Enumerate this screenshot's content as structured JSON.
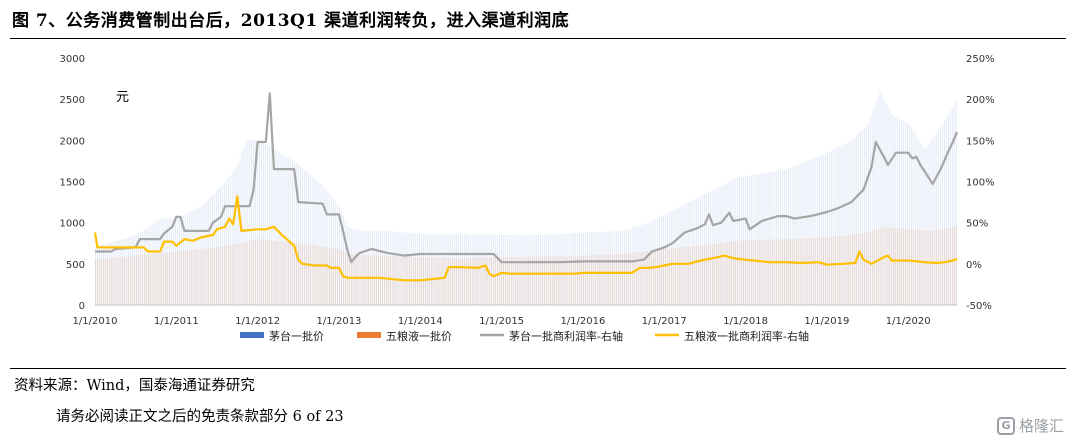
{
  "title": "图 7、公务消费管制出台后，2013Q1 渠道利润转负，进入渠道利润底",
  "source": "资料来源：Wind，国泰海通证券研究",
  "footer": "请务必阅读正文之后的免责条款部分 6 of 23",
  "watermark": "格隆汇",
  "watermark_logo": "G",
  "chart_data": {
    "type": "bar+line",
    "unit_label": "元",
    "x_ticks": [
      "1/1/2010",
      "1/1/2011",
      "1/1/2012",
      "1/1/2013",
      "1/1/2014",
      "1/1/2015",
      "1/1/2016",
      "1/1/2017",
      "1/1/2018",
      "1/1/2019",
      "1/1/2020"
    ],
    "x_range": [
      2010.0,
      2020.6
    ],
    "y_left": {
      "min": 0,
      "max": 3000,
      "ticks": [
        "0",
        "500",
        "1000",
        "1500",
        "2000",
        "2500",
        "3000"
      ]
    },
    "y_right": {
      "min": -50,
      "max": 250,
      "ticks": [
        "-50%",
        "0%",
        "50%",
        "100%",
        "150%",
        "200%",
        "250%"
      ]
    },
    "colors": {
      "moutai_bar": "#4472c4",
      "wuliangye_bar": "#ed7d31",
      "moutai_margin": "#a5a5a5",
      "wuliangye_margin": "#ffc000"
    },
    "series": [
      {
        "name": "茅台一批价",
        "axis": "left",
        "kind": "bar",
        "points": [
          [
            2010.0,
            700
          ],
          [
            2010.5,
            850
          ],
          [
            2010.8,
            1050
          ],
          [
            2011.0,
            1050
          ],
          [
            2011.3,
            1200
          ],
          [
            2011.6,
            1500
          ],
          [
            2011.75,
            1700
          ],
          [
            2011.85,
            2000
          ],
          [
            2012.0,
            2000
          ],
          [
            2012.2,
            1900
          ],
          [
            2012.5,
            1700
          ],
          [
            2012.8,
            1450
          ],
          [
            2013.0,
            1200
          ],
          [
            2013.1,
            950
          ],
          [
            2013.3,
            900
          ],
          [
            2013.6,
            900
          ],
          [
            2014.0,
            860
          ],
          [
            2014.5,
            860
          ],
          [
            2015.0,
            850
          ],
          [
            2015.5,
            850
          ],
          [
            2016.0,
            880
          ],
          [
            2016.5,
            900
          ],
          [
            2016.8,
            1000
          ],
          [
            2017.0,
            1100
          ],
          [
            2017.3,
            1250
          ],
          [
            2017.6,
            1400
          ],
          [
            2017.9,
            1550
          ],
          [
            2018.2,
            1600
          ],
          [
            2018.5,
            1650
          ],
          [
            2019.0,
            1850
          ],
          [
            2019.3,
            2000
          ],
          [
            2019.5,
            2200
          ],
          [
            2019.65,
            2600
          ],
          [
            2019.8,
            2300
          ],
          [
            2020.0,
            2200
          ],
          [
            2020.2,
            1900
          ],
          [
            2020.35,
            2100
          ],
          [
            2020.6,
            2500
          ]
        ]
      },
      {
        "name": "五粮液一批价",
        "axis": "left",
        "kind": "bar",
        "points": [
          [
            2010.0,
            550
          ],
          [
            2010.5,
            600
          ],
          [
            2011.0,
            650
          ],
          [
            2011.5,
            700
          ],
          [
            2011.9,
            780
          ],
          [
            2012.0,
            800
          ],
          [
            2012.5,
            750
          ],
          [
            2013.0,
            680
          ],
          [
            2013.1,
            620
          ],
          [
            2013.5,
            600
          ],
          [
            2014.0,
            580
          ],
          [
            2014.5,
            570
          ],
          [
            2015.0,
            580
          ],
          [
            2015.5,
            590
          ],
          [
            2016.0,
            600
          ],
          [
            2016.5,
            620
          ],
          [
            2017.0,
            680
          ],
          [
            2017.5,
            730
          ],
          [
            2018.0,
            790
          ],
          [
            2018.5,
            800
          ],
          [
            2019.0,
            820
          ],
          [
            2019.5,
            880
          ],
          [
            2019.7,
            950
          ],
          [
            2020.0,
            920
          ],
          [
            2020.3,
            900
          ],
          [
            2020.6,
            960
          ]
        ]
      },
      {
        "name": "茅台一批商利润率-右轴",
        "axis": "right",
        "kind": "line",
        "points": [
          [
            2010.0,
            15
          ],
          [
            2010.2,
            15
          ],
          [
            2010.25,
            18
          ],
          [
            2010.5,
            20
          ],
          [
            2010.55,
            30
          ],
          [
            2010.8,
            30
          ],
          [
            2010.85,
            37
          ],
          [
            2010.95,
            45
          ],
          [
            2011.0,
            57
          ],
          [
            2011.05,
            57
          ],
          [
            2011.1,
            40
          ],
          [
            2011.4,
            40
          ],
          [
            2011.45,
            50
          ],
          [
            2011.55,
            57
          ],
          [
            2011.6,
            70
          ],
          [
            2011.9,
            70
          ],
          [
            2011.95,
            90
          ],
          [
            2012.0,
            148
          ],
          [
            2012.1,
            148
          ],
          [
            2012.15,
            207
          ],
          [
            2012.2,
            115
          ],
          [
            2012.45,
            115
          ],
          [
            2012.5,
            75
          ],
          [
            2012.8,
            73
          ],
          [
            2012.85,
            60
          ],
          [
            2013.0,
            60
          ],
          [
            2013.05,
            40
          ],
          [
            2013.1,
            18
          ],
          [
            2013.15,
            2
          ],
          [
            2013.2,
            8
          ],
          [
            2013.25,
            13
          ],
          [
            2013.4,
            18
          ],
          [
            2013.6,
            13
          ],
          [
            2013.8,
            10
          ],
          [
            2014.0,
            12
          ],
          [
            2014.3,
            12
          ],
          [
            2014.6,
            12
          ],
          [
            2014.9,
            12
          ],
          [
            2015.0,
            2
          ],
          [
            2015.3,
            2
          ],
          [
            2015.7,
            2
          ],
          [
            2016.0,
            3
          ],
          [
            2016.4,
            3
          ],
          [
            2016.6,
            3
          ],
          [
            2016.75,
            5
          ],
          [
            2016.85,
            15
          ],
          [
            2017.0,
            20
          ],
          [
            2017.1,
            25
          ],
          [
            2017.25,
            38
          ],
          [
            2017.4,
            43
          ],
          [
            2017.5,
            48
          ],
          [
            2017.55,
            60
          ],
          [
            2017.6,
            47
          ],
          [
            2017.7,
            50
          ],
          [
            2017.8,
            62
          ],
          [
            2017.85,
            52
          ],
          [
            2018.0,
            55
          ],
          [
            2018.05,
            42
          ],
          [
            2018.2,
            52
          ],
          [
            2018.4,
            58
          ],
          [
            2018.5,
            58
          ],
          [
            2018.6,
            55
          ],
          [
            2018.8,
            58
          ],
          [
            2019.0,
            63
          ],
          [
            2019.15,
            68
          ],
          [
            2019.3,
            75
          ],
          [
            2019.45,
            90
          ],
          [
            2019.55,
            118
          ],
          [
            2019.6,
            148
          ],
          [
            2019.7,
            130
          ],
          [
            2019.75,
            120
          ],
          [
            2019.85,
            135
          ],
          [
            2020.0,
            135
          ],
          [
            2020.05,
            128
          ],
          [
            2020.1,
            130
          ],
          [
            2020.15,
            120
          ],
          [
            2020.25,
            105
          ],
          [
            2020.3,
            97
          ],
          [
            2020.4,
            115
          ],
          [
            2020.5,
            138
          ],
          [
            2020.55,
            148
          ],
          [
            2020.6,
            160
          ]
        ]
      },
      {
        "name": "五粮液一批商利润率-右轴",
        "axis": "right",
        "kind": "line",
        "points": [
          [
            2010.0,
            38
          ],
          [
            2010.03,
            20
          ],
          [
            2010.5,
            20
          ],
          [
            2010.6,
            20
          ],
          [
            2010.65,
            15
          ],
          [
            2010.8,
            15
          ],
          [
            2010.85,
            27
          ],
          [
            2010.95,
            27
          ],
          [
            2011.0,
            22
          ],
          [
            2011.1,
            30
          ],
          [
            2011.2,
            28
          ],
          [
            2011.3,
            32
          ],
          [
            2011.45,
            35
          ],
          [
            2011.5,
            42
          ],
          [
            2011.6,
            45
          ],
          [
            2011.65,
            55
          ],
          [
            2011.7,
            48
          ],
          [
            2011.75,
            82
          ],
          [
            2011.8,
            40
          ],
          [
            2012.0,
            42
          ],
          [
            2012.1,
            42
          ],
          [
            2012.2,
            45
          ],
          [
            2012.3,
            35
          ],
          [
            2012.45,
            22
          ],
          [
            2012.5,
            5
          ],
          [
            2012.55,
            0
          ],
          [
            2012.7,
            -2
          ],
          [
            2012.85,
            -2
          ],
          [
            2012.9,
            -5
          ],
          [
            2013.0,
            -5
          ],
          [
            2013.05,
            -15
          ],
          [
            2013.1,
            -17
          ],
          [
            2013.5,
            -17
          ],
          [
            2013.8,
            -20
          ],
          [
            2014.0,
            -20
          ],
          [
            2014.3,
            -17
          ],
          [
            2014.35,
            -4
          ],
          [
            2014.5,
            -4
          ],
          [
            2014.7,
            -5
          ],
          [
            2014.8,
            -2
          ],
          [
            2014.85,
            -12
          ],
          [
            2014.9,
            -15
          ],
          [
            2015.0,
            -11
          ],
          [
            2015.1,
            -12
          ],
          [
            2015.5,
            -12
          ],
          [
            2015.9,
            -12
          ],
          [
            2016.0,
            -11
          ],
          [
            2016.3,
            -11
          ],
          [
            2016.6,
            -11
          ],
          [
            2016.7,
            -5
          ],
          [
            2016.8,
            -5
          ],
          [
            2016.9,
            -4
          ],
          [
            2017.0,
            -2
          ],
          [
            2017.1,
            0
          ],
          [
            2017.3,
            0
          ],
          [
            2017.4,
            3
          ],
          [
            2017.5,
            5
          ],
          [
            2017.6,
            7
          ],
          [
            2017.75,
            10
          ],
          [
            2017.8,
            8
          ],
          [
            2017.9,
            6
          ],
          [
            2018.0,
            5
          ],
          [
            2018.2,
            3
          ],
          [
            2018.3,
            2
          ],
          [
            2018.5,
            2
          ],
          [
            2018.7,
            1
          ],
          [
            2018.9,
            2
          ],
          [
            2019.0,
            -1
          ],
          [
            2019.2,
            0
          ],
          [
            2019.35,
            1
          ],
          [
            2019.4,
            15
          ],
          [
            2019.45,
            5
          ],
          [
            2019.55,
            0
          ],
          [
            2019.7,
            8
          ],
          [
            2019.75,
            10
          ],
          [
            2019.8,
            4
          ],
          [
            2020.0,
            4
          ],
          [
            2020.2,
            2
          ],
          [
            2020.35,
            1
          ],
          [
            2020.45,
            2
          ],
          [
            2020.55,
            4
          ],
          [
            2020.6,
            6
          ]
        ]
      }
    ]
  }
}
